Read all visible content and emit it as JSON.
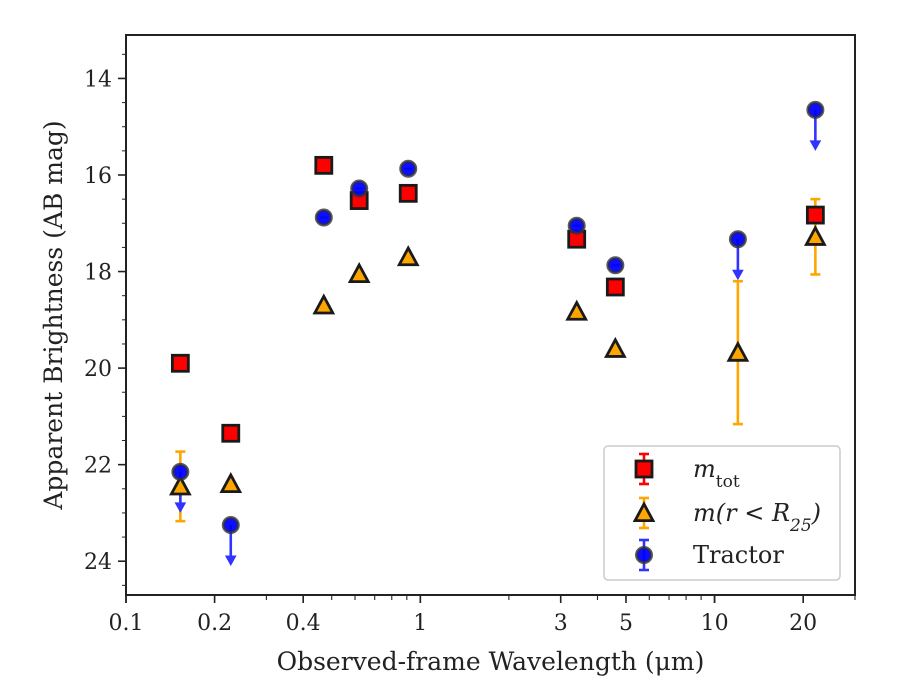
{
  "chart_data": {
    "type": "scatter",
    "xlabel": "Observed-frame Wavelength (μm)",
    "ylabel": "Apparent Brightness (AB mag)",
    "xscale": "log",
    "xlim": [
      0.1,
      30
    ],
    "ylim": [
      24.7,
      13.1
    ],
    "y_inverted": true,
    "x_ticks": [
      0.1,
      0.2,
      0.4,
      1,
      3,
      5,
      10,
      20
    ],
    "x_tick_labels": [
      "0.1",
      "0.2",
      "0.4",
      "1",
      "3",
      "5",
      "10",
      "20"
    ],
    "y_ticks": [
      14,
      16,
      18,
      20,
      22,
      24
    ],
    "y_tick_labels": [
      "14",
      "16",
      "18",
      "20",
      "22",
      "24"
    ],
    "grid": false,
    "legend_position": "lower-right",
    "series": [
      {
        "name": "m_tot",
        "legend_main": "m",
        "legend_sub": "tot",
        "marker": "square",
        "color": "#ff0000",
        "edge_color": "#1a1a1a",
        "error_color": "#ff0000",
        "points": [
          {
            "x": 0.153,
            "y": 19.9,
            "err": 0.0
          },
          {
            "x": 0.227,
            "y": 21.35,
            "err": 0.0
          },
          {
            "x": 0.47,
            "y": 15.8,
            "err": 0.0
          },
          {
            "x": 0.62,
            "y": 16.53,
            "err": 0.0
          },
          {
            "x": 0.91,
            "y": 16.38,
            "err": 0.0
          },
          {
            "x": 3.4,
            "y": 17.33,
            "err": 0.0
          },
          {
            "x": 4.6,
            "y": 18.32,
            "err": 0.0
          },
          {
            "x": 22.0,
            "y": 16.83,
            "err": 0.0
          }
        ]
      },
      {
        "name": "m(r < R_25)",
        "legend_main": "m(r < R",
        "legend_sub": "25",
        "legend_close": ")",
        "marker": "triangle",
        "color": "#ffa500",
        "edge_color": "#1a1a1a",
        "error_color": "#ffa500",
        "points": [
          {
            "x": 0.153,
            "y": 22.45,
            "err": 0.72
          },
          {
            "x": 0.227,
            "y": 22.4,
            "err": 0.0
          },
          {
            "x": 0.47,
            "y": 18.7,
            "err": 0.0
          },
          {
            "x": 0.62,
            "y": 18.05,
            "err": 0.0
          },
          {
            "x": 0.91,
            "y": 17.7,
            "err": 0.0
          },
          {
            "x": 3.4,
            "y": 18.83,
            "err": 0.0
          },
          {
            "x": 4.6,
            "y": 19.6,
            "err": 0.0
          },
          {
            "x": 12.0,
            "y": 19.68,
            "err": 1.48
          },
          {
            "x": 22.0,
            "y": 17.28,
            "err": 0.78
          }
        ]
      },
      {
        "name": "Tractor",
        "marker": "circle",
        "color": "#0000ff",
        "edge_color": "#333333",
        "error_color": "#3333ff",
        "points": [
          {
            "x": 0.153,
            "y": 22.15,
            "upper_limit": true
          },
          {
            "x": 0.227,
            "y": 23.25,
            "upper_limit": true
          },
          {
            "x": 0.47,
            "y": 16.88,
            "upper_limit": false
          },
          {
            "x": 0.62,
            "y": 16.28,
            "upper_limit": false
          },
          {
            "x": 0.91,
            "y": 15.87,
            "upper_limit": false
          },
          {
            "x": 3.4,
            "y": 17.05,
            "upper_limit": false
          },
          {
            "x": 4.6,
            "y": 17.87,
            "upper_limit": false
          },
          {
            "x": 12.0,
            "y": 17.33,
            "upper_limit": true
          },
          {
            "x": 22.0,
            "y": 14.65,
            "upper_limit": true
          }
        ]
      }
    ]
  }
}
